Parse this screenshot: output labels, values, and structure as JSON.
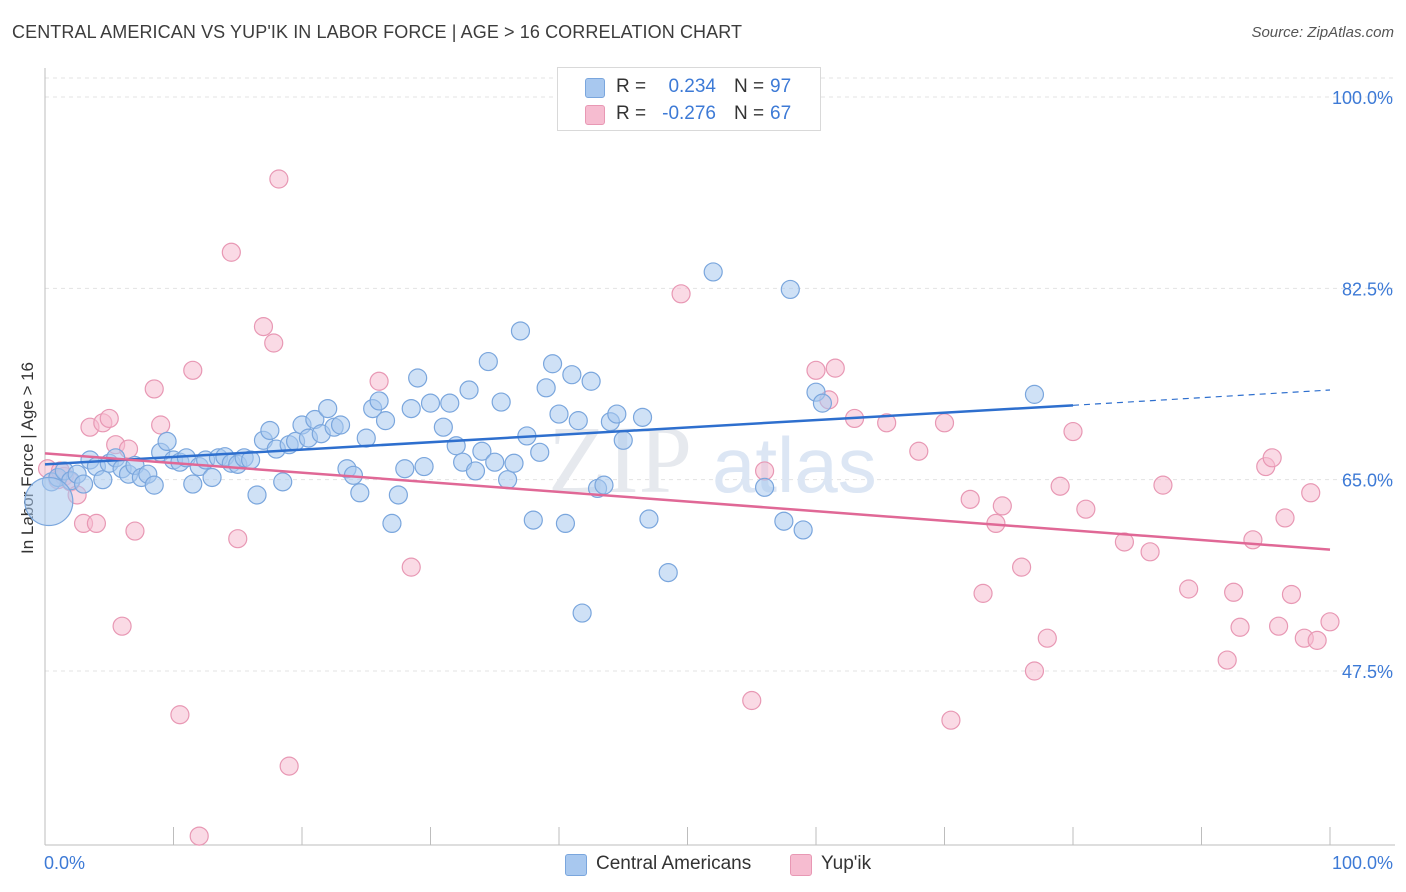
{
  "title": "CENTRAL AMERICAN VS YUP'IK IN LABOR FORCE | AGE > 16 CORRELATION CHART",
  "source": "Source: ZipAtlas.com",
  "watermark": {
    "zip": "ZIP",
    "atlas": "atlas"
  },
  "colors": {
    "blue_fill": "#a8c8ef",
    "blue_stroke": "#7aa6dd",
    "blue_line": "#2e6fce",
    "pink_fill": "#f6bcd0",
    "pink_stroke": "#e898b4",
    "pink_line": "#e06896",
    "tick_label": "#3d7ad6",
    "grid": "#e3e3e3"
  },
  "legend_top": {
    "rows": [
      {
        "r_label": "R =",
        "r_value": "0.234",
        "n_label": "N =",
        "n_value": "97",
        "color": "blue"
      },
      {
        "r_label": "R =",
        "r_value": "-0.276",
        "n_label": "N =",
        "n_value": "67",
        "color": "pink"
      }
    ]
  },
  "legend_bottom": [
    {
      "label": "Central Americans",
      "color": "blue"
    },
    {
      "label": "Yup'ik",
      "color": "pink"
    }
  ],
  "chart_data": {
    "type": "scatter",
    "title": "CENTRAL AMERICAN VS YUP'IK IN LABOR FORCE | AGE > 16 CORRELATION CHART",
    "xlabel": "",
    "ylabel": "In Labor Force | Age > 16",
    "xlim": [
      0,
      100
    ],
    "ylim": [
      29,
      102
    ],
    "x_tick_labels": [
      "0.0%",
      "100.0%"
    ],
    "y_ticks": [
      47.5,
      65.0,
      82.5,
      100.0
    ],
    "y_tick_labels": [
      "47.5%",
      "65.0%",
      "82.5%",
      "100.0%"
    ],
    "grid": true,
    "legend_position": "top-center",
    "series": [
      {
        "name": "Central Americans",
        "color": "blue",
        "r": 0.234,
        "n": 97,
        "trend": {
          "x0": 0,
          "y0": 66.4,
          "x1": 80,
          "y1": 71.8,
          "dashed_to_x": 100,
          "dashed_to_y": 73.2
        },
        "points": [
          [
            0.5,
            64.8
          ],
          [
            1.0,
            65.2
          ],
          [
            1.5,
            65.8
          ],
          [
            2.0,
            64.9
          ],
          [
            2.5,
            65.5
          ],
          [
            3.0,
            64.6
          ],
          [
            3.5,
            66.8
          ],
          [
            4.0,
            66.2
          ],
          [
            4.5,
            65.0
          ],
          [
            5.0,
            66.5
          ],
          [
            5.5,
            67.0
          ],
          [
            6.0,
            66.0
          ],
          [
            6.5,
            65.5
          ],
          [
            7.0,
            66.3
          ],
          [
            7.5,
            65.2
          ],
          [
            8.0,
            65.5
          ],
          [
            8.5,
            64.5
          ],
          [
            9.0,
            67.5
          ],
          [
            9.5,
            68.5
          ],
          [
            10.0,
            66.8
          ],
          [
            10.5,
            66.6
          ],
          [
            11.0,
            67.0
          ],
          [
            11.5,
            64.6
          ],
          [
            12.0,
            66.2
          ],
          [
            12.5,
            66.8
          ],
          [
            13.0,
            65.2
          ],
          [
            13.5,
            67.0
          ],
          [
            14.0,
            67.1
          ],
          [
            14.5,
            66.5
          ],
          [
            15.0,
            66.4
          ],
          [
            15.5,
            67.0
          ],
          [
            16.0,
            66.8
          ],
          [
            16.5,
            63.6
          ],
          [
            17.0,
            68.6
          ],
          [
            17.5,
            69.5
          ],
          [
            18.0,
            67.8
          ],
          [
            18.5,
            64.8
          ],
          [
            19.0,
            68.2
          ],
          [
            19.5,
            68.5
          ],
          [
            20.0,
            70.0
          ],
          [
            20.5,
            68.8
          ],
          [
            21.0,
            70.5
          ],
          [
            21.5,
            69.2
          ],
          [
            22.0,
            71.5
          ],
          [
            22.5,
            69.8
          ],
          [
            23.0,
            70.0
          ],
          [
            23.5,
            66.0
          ],
          [
            24.0,
            65.4
          ],
          [
            24.5,
            63.8
          ],
          [
            25.0,
            68.8
          ],
          [
            25.5,
            71.5
          ],
          [
            26.0,
            72.2
          ],
          [
            26.5,
            70.4
          ],
          [
            27.0,
            61.0
          ],
          [
            27.5,
            63.6
          ],
          [
            28.0,
            66.0
          ],
          [
            28.5,
            71.5
          ],
          [
            29.0,
            74.3
          ],
          [
            29.5,
            66.2
          ],
          [
            30.0,
            72.0
          ],
          [
            31.0,
            69.8
          ],
          [
            31.5,
            72.0
          ],
          [
            32.0,
            68.1
          ],
          [
            32.5,
            66.6
          ],
          [
            33.0,
            73.2
          ],
          [
            33.5,
            65.8
          ],
          [
            34.0,
            67.6
          ],
          [
            34.5,
            75.8
          ],
          [
            35.0,
            66.6
          ],
          [
            35.5,
            72.1
          ],
          [
            36.0,
            65.0
          ],
          [
            36.5,
            66.5
          ],
          [
            37.0,
            78.6
          ],
          [
            37.5,
            69.0
          ],
          [
            38.0,
            61.3
          ],
          [
            38.5,
            67.5
          ],
          [
            39.0,
            73.4
          ],
          [
            39.5,
            75.6
          ],
          [
            40.0,
            71.0
          ],
          [
            40.5,
            61.0
          ],
          [
            41.0,
            74.6
          ],
          [
            41.5,
            70.4
          ],
          [
            41.8,
            52.8
          ],
          [
            42.5,
            74.0
          ],
          [
            43.0,
            64.2
          ],
          [
            43.5,
            64.5
          ],
          [
            44.0,
            70.3
          ],
          [
            44.5,
            71.0
          ],
          [
            45.0,
            68.6
          ],
          [
            46.5,
            70.7
          ],
          [
            47.0,
            61.4
          ],
          [
            48.5,
            56.5
          ],
          [
            52.0,
            84.0
          ],
          [
            56.0,
            64.3
          ],
          [
            58.0,
            82.4
          ],
          [
            57.5,
            61.2
          ],
          [
            59.0,
            60.4
          ],
          [
            60.0,
            73.0
          ],
          [
            60.5,
            72.0
          ],
          [
            77.0,
            72.8
          ],
          [
            0.3,
            63.0
          ]
        ]
      },
      {
        "name": "Yup'ik",
        "color": "pink",
        "r": -0.276,
        "n": 67,
        "trend": {
          "x0": 0,
          "y0": 67.4,
          "x1": 100,
          "y1": 58.6
        },
        "points": [
          [
            0.2,
            66.0
          ],
          [
            1.0,
            65.0
          ],
          [
            1.5,
            65.3
          ],
          [
            2.0,
            64.8
          ],
          [
            2.5,
            63.6
          ],
          [
            3.0,
            61.0
          ],
          [
            3.5,
            69.8
          ],
          [
            4.0,
            61.0
          ],
          [
            4.5,
            70.2
          ],
          [
            5.0,
            70.6
          ],
          [
            5.5,
            68.2
          ],
          [
            6.0,
            51.6
          ],
          [
            6.5,
            67.8
          ],
          [
            7.0,
            60.3
          ],
          [
            8.5,
            73.3
          ],
          [
            9.0,
            70.0
          ],
          [
            10.5,
            43.5
          ],
          [
            11.5,
            75.0
          ],
          [
            12.0,
            32.4
          ],
          [
            14.5,
            85.8
          ],
          [
            15.0,
            59.6
          ],
          [
            17.0,
            79.0
          ],
          [
            17.8,
            77.5
          ],
          [
            18.2,
            92.5
          ],
          [
            19.0,
            38.8
          ],
          [
            26.0,
            74.0
          ],
          [
            28.5,
            57.0
          ],
          [
            41.0,
            100.2
          ],
          [
            49.5,
            82.0
          ],
          [
            55.0,
            44.8
          ],
          [
            56.0,
            65.8
          ],
          [
            60.0,
            75.0
          ],
          [
            61.5,
            75.2
          ],
          [
            61.0,
            72.3
          ],
          [
            63.0,
            70.6
          ],
          [
            65.5,
            70.2
          ],
          [
            68.0,
            67.6
          ],
          [
            70.0,
            70.2
          ],
          [
            70.5,
            43.0
          ],
          [
            72.0,
            63.2
          ],
          [
            73.0,
            54.6
          ],
          [
            74.0,
            61.0
          ],
          [
            74.5,
            62.6
          ],
          [
            76.0,
            57.0
          ],
          [
            77.0,
            47.5
          ],
          [
            78.0,
            50.5
          ],
          [
            79.0,
            64.4
          ],
          [
            80.0,
            69.4
          ],
          [
            81.0,
            62.3
          ],
          [
            84.0,
            59.3
          ],
          [
            86.0,
            58.4
          ],
          [
            87.0,
            64.5
          ],
          [
            89.0,
            55.0
          ],
          [
            92.0,
            48.5
          ],
          [
            92.5,
            54.7
          ],
          [
            93.0,
            51.5
          ],
          [
            94.0,
            59.5
          ],
          [
            95.0,
            66.2
          ],
          [
            96.0,
            51.6
          ],
          [
            97.0,
            54.5
          ],
          [
            98.0,
            50.5
          ],
          [
            99.0,
            50.3
          ],
          [
            100.0,
            52.0
          ],
          [
            98.5,
            63.8
          ],
          [
            95.5,
            67.0
          ],
          [
            96.5,
            61.5
          ],
          [
            1.2,
            65.8
          ]
        ]
      }
    ]
  }
}
